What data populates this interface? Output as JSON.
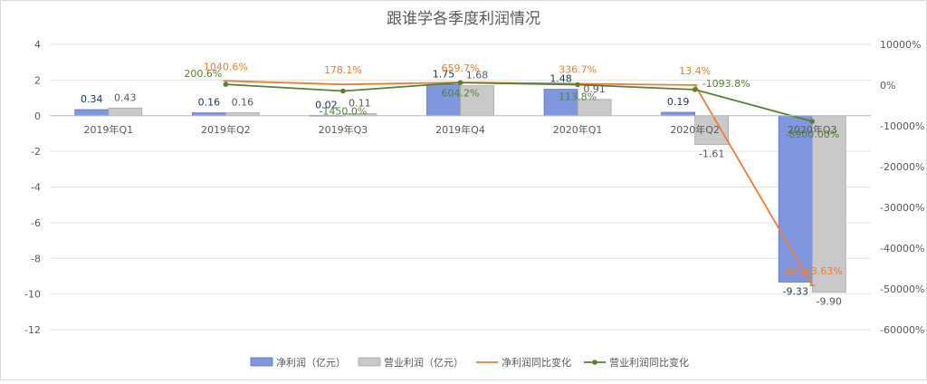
{
  "chart_data": {
    "type": "bar",
    "title": "跟谁学各季度利润情况",
    "categories": [
      "2019年Q1",
      "2019年Q2",
      "2019年Q3",
      "2019年Q4",
      "2020年Q1",
      "2020年Q2",
      "2020年Q3"
    ],
    "left_axis": {
      "ylim": [
        -12,
        4
      ],
      "ticks": [
        "4",
        "2",
        "0",
        "-2",
        "-4",
        "-6",
        "-8",
        "-10",
        "-12"
      ]
    },
    "right_axis": {
      "ylim": [
        -60000,
        10000
      ],
      "ticks": [
        "10000%",
        "0%",
        "-10000%",
        "-20000%",
        "-30000%",
        "-40000%",
        "-50000%",
        "-60000%"
      ]
    },
    "series": [
      {
        "name": "净利润（亿元）",
        "kind": "bar",
        "axis": "left",
        "color": "#7f97df",
        "values": [
          0.34,
          0.16,
          0.02,
          1.75,
          1.48,
          0.19,
          -9.33
        ],
        "labels": [
          "0.34",
          "0.16",
          "0.02",
          "1.75",
          "1.48",
          "0.19",
          "-9.33"
        ]
      },
      {
        "name": "营业利润（亿元）",
        "kind": "bar",
        "axis": "left",
        "color": "#c9c9c9",
        "values": [
          0.43,
          0.16,
          0.11,
          1.68,
          0.91,
          -1.61,
          -9.9
        ],
        "labels": [
          "0.43",
          "0.16",
          "0.11",
          "1.68",
          "0.91",
          "-1.61",
          "-9.90"
        ]
      },
      {
        "name": "净利润同比变化",
        "kind": "line",
        "axis": "right",
        "color": "#ed7d31",
        "values": [
          null,
          1040.6,
          178.1,
          659.7,
          336.7,
          13.4,
          -49163.63
        ],
        "labels": [
          "",
          "1040.6%",
          "178.1%",
          "659.7%",
          "336.7%",
          "13.4%",
          "-49163.63%"
        ]
      },
      {
        "name": "营业利润同比变化",
        "kind": "line",
        "axis": "right",
        "color": "#548235",
        "values": [
          null,
          200.6,
          -1450.0,
          604.2,
          113.8,
          -1093.8,
          -8900.0
        ],
        "labels": [
          "",
          "200.6%",
          "-1450.0%",
          "604.2%",
          "113.8%",
          "-1093.8%",
          "-8900.00%"
        ]
      }
    ],
    "legend": "bottom",
    "grid": true
  }
}
